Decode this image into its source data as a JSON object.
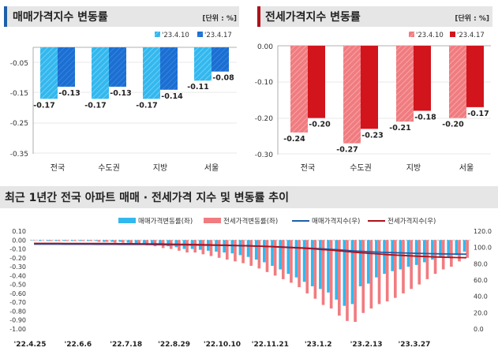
{
  "colors": {
    "sale_10": "#33b8ee",
    "sale_17": "#1c6fd1",
    "jeonse_10": "#f07c80",
    "jeonse_17": "#d2141c",
    "sale_index_line": "#1f5fa8",
    "jeonse_index_line": "#b0101a",
    "panel_bg": "#e6e6e6"
  },
  "chart_data": [
    {
      "type": "bar",
      "title": "매매가격지수 변동률",
      "unit_label": "[단위 : %]",
      "categories": [
        "전국",
        "수도권",
        "지방",
        "서울"
      ],
      "series": [
        {
          "name": "'23.4.10",
          "values": [
            -0.17,
            -0.17,
            -0.17,
            -0.11
          ]
        },
        {
          "name": "'23.4.17",
          "values": [
            -0.13,
            -0.13,
            -0.14,
            -0.08
          ]
        }
      ],
      "data_labels": [
        [
          "-0.17",
          "-0.17",
          "-0.17",
          "-0.11"
        ],
        [
          "-0.13",
          "-0.13",
          "-0.14",
          "-0.08"
        ]
      ],
      "yticks": [
        "-0.05",
        "-0.15",
        "-0.25",
        "-0.35"
      ],
      "ylim": [
        -0.35,
        0
      ]
    },
    {
      "type": "bar",
      "title": "전세가격지수 변동률",
      "unit_label": "[단위 : %]",
      "categories": [
        "전국",
        "수도권",
        "지방",
        "서울"
      ],
      "series": [
        {
          "name": "'23.4.10",
          "values": [
            -0.24,
            -0.27,
            -0.21,
            -0.2
          ]
        },
        {
          "name": "'23.4.17",
          "values": [
            -0.2,
            -0.23,
            -0.18,
            -0.17
          ]
        }
      ],
      "data_labels": [
        [
          "-0.24",
          "-0.27",
          "-0.21",
          "-0.20"
        ],
        [
          "-0.20",
          "-0.23",
          "-0.18",
          "-0.17"
        ]
      ],
      "yticks": [
        "0.00",
        "-0.10",
        "-0.20",
        "-0.30"
      ],
      "ylim": [
        -0.3,
        0
      ]
    },
    {
      "type": "bar",
      "title": "최근 1년간 전국 아파트 매매 · 전세가격 지수 및 변동률 추이",
      "legend": [
        "매매가격변동률(좌)",
        "전세가격변동률(좌)",
        "매매가격지수(우)",
        "전세가격지수(우)"
      ],
      "x_ticks": [
        "'22.4.25",
        "'22.6.6",
        "'22.7.18",
        "'22.8.29",
        "'22.10.10",
        "'22.11.21",
        "'23.1.2",
        "'23.2.13",
        "'23.3.27"
      ],
      "left_ticks": [
        "0.10",
        "0.00",
        "-0.10",
        "-0.20",
        "-0.30",
        "-0.40",
        "-0.50",
        "-0.60",
        "-0.70",
        "-0.80",
        "-0.90",
        "-1.00"
      ],
      "right_ticks": [
        "120.0",
        "100.0",
        "80.0",
        "60.0",
        "40.0",
        "20.0",
        "0.0"
      ],
      "ylim_left": [
        -1.0,
        0.1
      ],
      "ylim_right": [
        0,
        120
      ],
      "sale_change": [
        0.0,
        -0.01,
        -0.01,
        -0.01,
        -0.01,
        -0.01,
        -0.01,
        -0.01,
        -0.01,
        -0.02,
        -0.02,
        -0.02,
        -0.03,
        -0.04,
        -0.04,
        -0.05,
        -0.06,
        -0.07,
        -0.08,
        -0.1,
        -0.1,
        -0.11,
        -0.12,
        -0.13,
        -0.14,
        -0.15,
        -0.17,
        -0.19,
        -0.22,
        -0.25,
        -0.29,
        -0.33,
        -0.38,
        -0.42,
        -0.47,
        -0.52,
        -0.55,
        -0.59,
        -0.67,
        -0.74,
        -0.72,
        -0.52,
        -0.49,
        -0.42,
        -0.38,
        -0.35,
        -0.33,
        -0.3,
        -0.28,
        -0.25,
        -0.22,
        -0.2,
        -0.19,
        -0.17,
        -0.13
      ],
      "jeonse_change": [
        0.0,
        0.0,
        -0.01,
        -0.01,
        -0.01,
        -0.01,
        -0.01,
        -0.01,
        -0.02,
        -0.02,
        -0.03,
        -0.03,
        -0.04,
        -0.05,
        -0.06,
        -0.07,
        -0.09,
        -0.1,
        -0.12,
        -0.14,
        -0.14,
        -0.16,
        -0.18,
        -0.2,
        -0.22,
        -0.24,
        -0.26,
        -0.29,
        -0.32,
        -0.36,
        -0.4,
        -0.44,
        -0.48,
        -0.53,
        -0.6,
        -0.66,
        -0.73,
        -0.77,
        -0.85,
        -0.91,
        -0.92,
        -0.82,
        -0.77,
        -0.72,
        -0.69,
        -0.65,
        -0.6,
        -0.55,
        -0.5,
        -0.44,
        -0.38,
        -0.33,
        -0.3,
        -0.24,
        -0.2
      ],
      "sale_index": [
        104.0,
        104.0,
        104.0,
        104.0,
        103.9,
        103.9,
        103.9,
        103.9,
        103.8,
        103.8,
        103.8,
        103.7,
        103.7,
        103.6,
        103.6,
        103.5,
        103.4,
        103.3,
        103.2,
        103.1,
        103.0,
        102.9,
        102.8,
        102.6,
        102.5,
        102.3,
        102.1,
        101.9,
        101.6,
        101.3,
        101.0,
        100.6,
        100.2,
        99.8,
        99.3,
        98.8,
        98.3,
        97.7,
        97.1,
        96.4,
        95.7,
        95.2,
        94.7,
        94.3,
        93.9,
        93.6,
        93.3,
        93.0,
        92.7,
        92.5,
        92.3,
        92.1,
        91.9,
        91.8,
        91.7
      ],
      "jeonse_index": [
        105.0,
        105.0,
        105.0,
        105.0,
        104.9,
        104.9,
        104.9,
        104.8,
        104.8,
        104.8,
        104.7,
        104.6,
        104.6,
        104.5,
        104.4,
        104.3,
        104.2,
        104.0,
        103.9,
        103.7,
        103.6,
        103.4,
        103.2,
        103.0,
        102.8,
        102.5,
        102.2,
        101.9,
        101.6,
        101.2,
        100.8,
        100.4,
        99.9,
        99.4,
        98.8,
        98.2,
        97.5,
        96.8,
        96.0,
        95.1,
        94.2,
        93.4,
        92.7,
        92.0,
        91.3,
        90.7,
        90.2,
        89.7,
        89.2,
        88.8,
        88.4,
        88.1,
        87.8,
        87.6,
        87.4
      ]
    }
  ]
}
